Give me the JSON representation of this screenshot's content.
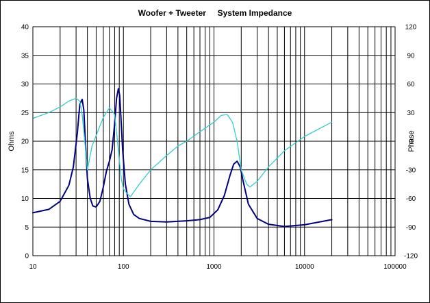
{
  "chart_data": {
    "type": "line",
    "title": "Woofer + Tweeter     System Impedance",
    "xlabel": "",
    "ylabel": "Ohms",
    "y2label": "Phase",
    "x_scale": "log",
    "xlim": [
      10,
      100000
    ],
    "ylim": [
      0,
      40
    ],
    "y2lim": [
      -120,
      120
    ],
    "grid": true,
    "x_ticks": [
      10,
      100,
      1000,
      10000,
      100000
    ],
    "x_tick_labels": [
      "10",
      "100",
      "1000",
      "10000",
      "100000"
    ],
    "y_ticks": [
      0,
      5,
      10,
      15,
      20,
      25,
      30,
      35,
      40
    ],
    "y_tick_labels": [
      "0",
      "5",
      "10",
      "15",
      "20",
      "25",
      "30",
      "35",
      "40"
    ],
    "y2_ticks": [
      -120,
      -90,
      -60,
      -30,
      0,
      30,
      60,
      90,
      120
    ],
    "y2_tick_labels": [
      "-120",
      "-90",
      "-60",
      "-30",
      "0",
      "30",
      "60",
      "90",
      "120"
    ],
    "series": [
      {
        "axis": "left",
        "color": "#000080",
        "x": [
          10,
          15,
          20,
          25,
          28,
          31,
          33,
          35,
          36.5,
          38,
          40,
          43,
          46,
          50,
          55,
          60,
          65,
          70,
          75,
          80,
          84,
          88,
          91,
          94,
          98,
          105,
          115,
          130,
          150,
          200,
          300,
          500,
          700,
          900,
          1100,
          1300,
          1500,
          1650,
          1800,
          1950,
          2100,
          2400,
          3000,
          4000,
          6000,
          10000,
          20000
        ],
        "values": [
          7.5,
          8.1,
          9.5,
          12.3,
          15.5,
          21.5,
          26.5,
          27.3,
          25.5,
          20.0,
          13.5,
          10.0,
          8.7,
          8.5,
          9.5,
          12.0,
          14.8,
          16.5,
          18.5,
          23.0,
          27.5,
          29.2,
          28.0,
          24.0,
          18.5,
          12.5,
          9.0,
          7.2,
          6.5,
          6.0,
          5.9,
          6.1,
          6.3,
          6.7,
          8.0,
          10.5,
          14.0,
          16.0,
          16.5,
          15.5,
          13.0,
          9.0,
          6.5,
          5.5,
          5.1,
          5.4,
          6.3
        ]
      },
      {
        "axis": "right",
        "color": "#33CCCC",
        "x": [
          10,
          15,
          20,
          25,
          30,
          33,
          35,
          37,
          40,
          45,
          50,
          60,
          70,
          80,
          85,
          90,
          95,
          100,
          110,
          120,
          150,
          200,
          300,
          400,
          500,
          700,
          1000,
          1200,
          1400,
          1600,
          1800,
          2000,
          2300,
          2500,
          3000,
          4000,
          6000,
          10000,
          20000
        ],
        "values": [
          24,
          30,
          36,
          42,
          45,
          42,
          28,
          5,
          -30,
          -5,
          6,
          25,
          35,
          28,
          5,
          -20,
          -40,
          -50,
          -55,
          -58,
          -45,
          -30,
          -15,
          -5,
          0,
          10,
          20,
          27,
          28,
          20,
          0,
          -30,
          -45,
          -48,
          -42,
          -27,
          -10,
          5,
          20
        ]
      }
    ]
  }
}
